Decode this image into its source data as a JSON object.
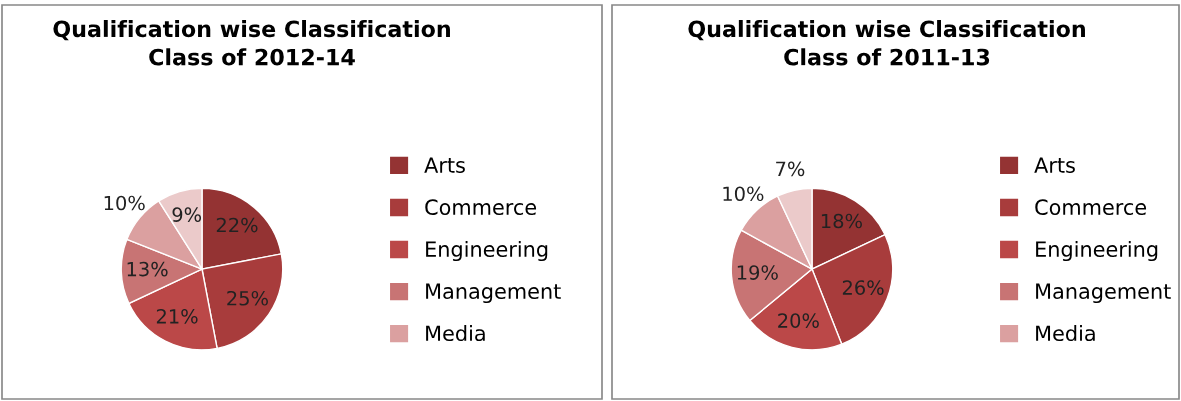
{
  "chart_data": [
    {
      "type": "pie",
      "title": "Qualification wise Classification\nClass of 2012-14",
      "categories": [
        "Arts",
        "Commerce",
        "Engineering",
        "Management",
        "Media",
        null
      ],
      "values": [
        22,
        25,
        21,
        13,
        10,
        9
      ],
      "value_labels": [
        "22%",
        "25%",
        "21%",
        "13%",
        "10%",
        "9%"
      ],
      "colors": [
        "#943333",
        "#a83c3c",
        "#bb4848",
        "#c87474",
        "#dba0a0",
        "#ebcaca"
      ],
      "legend": "right"
    },
    {
      "type": "pie",
      "title": "Qualification wise Classification\nClass of 2011-13",
      "categories": [
        "Arts",
        "Commerce",
        "Engineering",
        "Management",
        "Media",
        null
      ],
      "values": [
        18,
        26,
        20,
        19,
        10,
        7
      ],
      "value_labels": [
        "18%",
        "26%",
        "20%",
        "19%",
        "10%",
        "7%"
      ],
      "colors": [
        "#943333",
        "#a83c3c",
        "#bb4848",
        "#c87474",
        "#dba0a0",
        "#ebcaca"
      ],
      "legend": "right"
    }
  ]
}
